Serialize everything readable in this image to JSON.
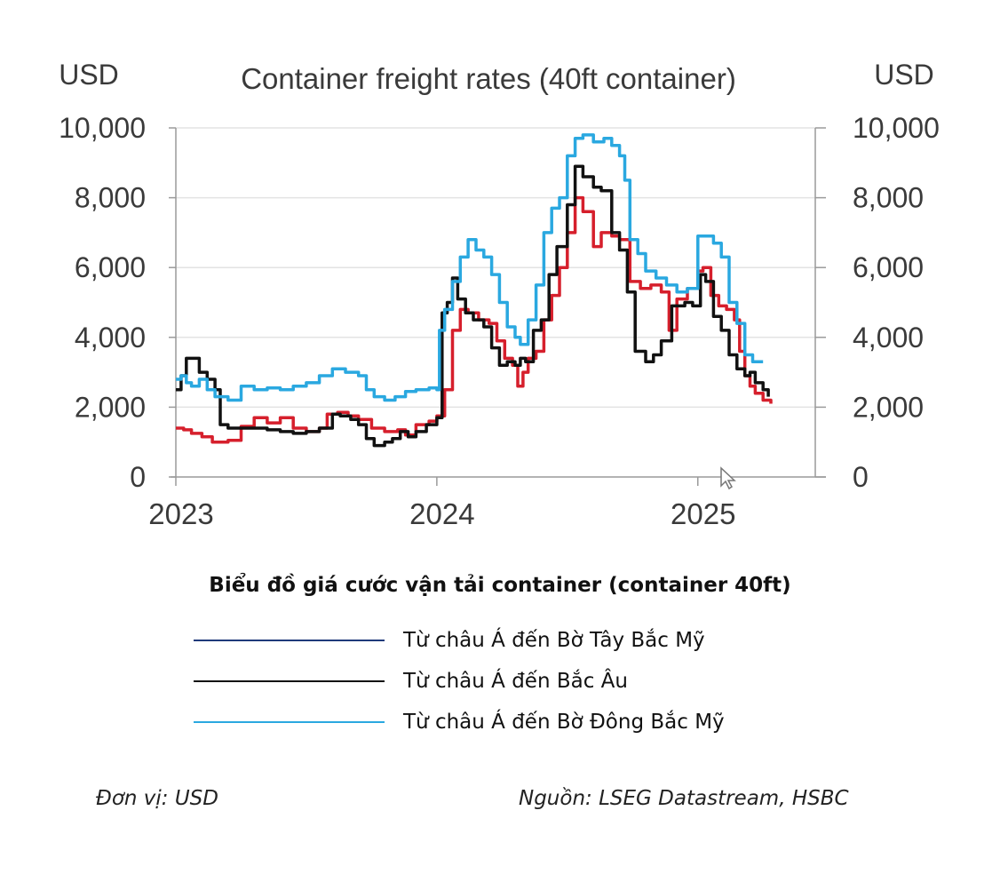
{
  "chart_data": {
    "type": "line",
    "title": "Container freight rates (40ft container)",
    "ylabel_left": "USD",
    "ylabel_right": "USD",
    "ylim": [
      0,
      10000
    ],
    "yticks": [
      0,
      2000,
      4000,
      6000,
      8000,
      10000
    ],
    "ytick_labels": [
      "0",
      "2,000",
      "4,000",
      "6,000",
      "8,000",
      "10,000"
    ],
    "xlim": [
      2023.0,
      2025.45
    ],
    "xticks": [
      2023,
      2024,
      2025
    ],
    "xtick_labels": [
      "2023",
      "2024",
      "2025"
    ],
    "grid": "horizontal",
    "series": [
      {
        "color": "#d61f2c",
        "points": [
          [
            2023.0,
            1400
          ],
          [
            2023.03,
            1350
          ],
          [
            2023.06,
            1250
          ],
          [
            2023.1,
            1150
          ],
          [
            2023.14,
            1000
          ],
          [
            2023.2,
            1050
          ],
          [
            2023.25,
            1450
          ],
          [
            2023.3,
            1700
          ],
          [
            2023.35,
            1550
          ],
          [
            2023.4,
            1700
          ],
          [
            2023.45,
            1400
          ],
          [
            2023.5,
            1300
          ],
          [
            2023.55,
            1400
          ],
          [
            2023.58,
            1800
          ],
          [
            2023.62,
            1850
          ],
          [
            2023.66,
            1750
          ],
          [
            2023.7,
            1650
          ],
          [
            2023.75,
            1400
          ],
          [
            2023.8,
            1300
          ],
          [
            2023.85,
            1350
          ],
          [
            2023.88,
            1200
          ],
          [
            2023.92,
            1500
          ],
          [
            2023.97,
            1600
          ],
          [
            2024.0,
            1750
          ],
          [
            2024.03,
            2500
          ],
          [
            2024.06,
            4200
          ],
          [
            2024.09,
            4800
          ],
          [
            2024.12,
            4700
          ],
          [
            2024.16,
            4500
          ],
          [
            2024.2,
            4400
          ],
          [
            2024.23,
            3900
          ],
          [
            2024.26,
            3400
          ],
          [
            2024.29,
            3200
          ],
          [
            2024.31,
            2600
          ],
          [
            2024.33,
            3000
          ],
          [
            2024.35,
            3400
          ],
          [
            2024.38,
            3600
          ],
          [
            2024.41,
            4500
          ],
          [
            2024.44,
            5200
          ],
          [
            2024.47,
            6000
          ],
          [
            2024.5,
            7000
          ],
          [
            2024.53,
            8000
          ],
          [
            2024.56,
            7600
          ],
          [
            2024.6,
            6600
          ],
          [
            2024.63,
            7000
          ],
          [
            2024.67,
            6900
          ],
          [
            2024.7,
            6800
          ],
          [
            2024.74,
            5600
          ],
          [
            2024.78,
            5400
          ],
          [
            2024.82,
            5500
          ],
          [
            2024.86,
            5300
          ],
          [
            2024.89,
            4200
          ],
          [
            2024.92,
            5100
          ],
          [
            2024.96,
            5400
          ],
          [
            2025.0,
            5900
          ],
          [
            2025.02,
            6000
          ],
          [
            2025.05,
            5200
          ],
          [
            2025.08,
            4900
          ],
          [
            2025.11,
            4800
          ],
          [
            2025.14,
            4500
          ],
          [
            2025.16,
            3600
          ],
          [
            2025.18,
            2900
          ],
          [
            2025.2,
            2600
          ],
          [
            2025.22,
            2400
          ],
          [
            2025.25,
            2200
          ],
          [
            2025.28,
            2100
          ]
        ]
      },
      {
        "color": "#111111",
        "points": [
          [
            2023.0,
            2500
          ],
          [
            2023.02,
            2900
          ],
          [
            2023.04,
            3400
          ],
          [
            2023.07,
            3400
          ],
          [
            2023.09,
            3000
          ],
          [
            2023.12,
            2800
          ],
          [
            2023.15,
            2500
          ],
          [
            2023.17,
            1500
          ],
          [
            2023.2,
            1400
          ],
          [
            2023.25,
            1400
          ],
          [
            2023.3,
            1400
          ],
          [
            2023.35,
            1350
          ],
          [
            2023.4,
            1300
          ],
          [
            2023.45,
            1250
          ],
          [
            2023.5,
            1300
          ],
          [
            2023.55,
            1400
          ],
          [
            2023.6,
            1800
          ],
          [
            2023.63,
            1750
          ],
          [
            2023.67,
            1650
          ],
          [
            2023.7,
            1500
          ],
          [
            2023.73,
            1100
          ],
          [
            2023.76,
            900
          ],
          [
            2023.8,
            1000
          ],
          [
            2023.83,
            1100
          ],
          [
            2023.86,
            1300
          ],
          [
            2023.89,
            1150
          ],
          [
            2023.92,
            1300
          ],
          [
            2023.96,
            1500
          ],
          [
            2024.0,
            1700
          ],
          [
            2024.02,
            4700
          ],
          [
            2024.04,
            5000
          ],
          [
            2024.06,
            5700
          ],
          [
            2024.08,
            5100
          ],
          [
            2024.11,
            4700
          ],
          [
            2024.14,
            4500
          ],
          [
            2024.18,
            4300
          ],
          [
            2024.21,
            3700
          ],
          [
            2024.24,
            3200
          ],
          [
            2024.27,
            3300
          ],
          [
            2024.3,
            3200
          ],
          [
            2024.32,
            3400
          ],
          [
            2024.34,
            3300
          ],
          [
            2024.37,
            4200
          ],
          [
            2024.4,
            4500
          ],
          [
            2024.43,
            5800
          ],
          [
            2024.46,
            6600
          ],
          [
            2024.5,
            7800
          ],
          [
            2024.53,
            8900
          ],
          [
            2024.56,
            8600
          ],
          [
            2024.6,
            8300
          ],
          [
            2024.63,
            8200
          ],
          [
            2024.67,
            7000
          ],
          [
            2024.7,
            6500
          ],
          [
            2024.73,
            5300
          ],
          [
            2024.76,
            3600
          ],
          [
            2024.8,
            3300
          ],
          [
            2024.83,
            3500
          ],
          [
            2024.86,
            3900
          ],
          [
            2024.9,
            4900
          ],
          [
            2024.95,
            5000
          ],
          [
            2024.98,
            4900
          ],
          [
            2025.01,
            5800
          ],
          [
            2025.03,
            5600
          ],
          [
            2025.06,
            4600
          ],
          [
            2025.09,
            4200
          ],
          [
            2025.12,
            3500
          ],
          [
            2025.15,
            3100
          ],
          [
            2025.18,
            2900
          ],
          [
            2025.2,
            3000
          ],
          [
            2025.22,
            2700
          ],
          [
            2025.25,
            2500
          ],
          [
            2025.27,
            2300
          ]
        ]
      },
      {
        "color": "#2aa8e0",
        "points": [
          [
            2023.0,
            2800
          ],
          [
            2023.02,
            2900
          ],
          [
            2023.04,
            2700
          ],
          [
            2023.06,
            2600
          ],
          [
            2023.09,
            2800
          ],
          [
            2023.12,
            2500
          ],
          [
            2023.15,
            2300
          ],
          [
            2023.2,
            2200
          ],
          [
            2023.25,
            2600
          ],
          [
            2023.3,
            2500
          ],
          [
            2023.35,
            2550
          ],
          [
            2023.4,
            2500
          ],
          [
            2023.45,
            2600
          ],
          [
            2023.5,
            2700
          ],
          [
            2023.55,
            2900
          ],
          [
            2023.6,
            3100
          ],
          [
            2023.65,
            3000
          ],
          [
            2023.7,
            2900
          ],
          [
            2023.73,
            2500
          ],
          [
            2023.76,
            2300
          ],
          [
            2023.8,
            2200
          ],
          [
            2023.84,
            2300
          ],
          [
            2023.88,
            2450
          ],
          [
            2023.92,
            2500
          ],
          [
            2023.97,
            2550
          ],
          [
            2024.0,
            2500
          ],
          [
            2024.01,
            4200
          ],
          [
            2024.03,
            4800
          ],
          [
            2024.06,
            5600
          ],
          [
            2024.09,
            6300
          ],
          [
            2024.12,
            6800
          ],
          [
            2024.15,
            6500
          ],
          [
            2024.18,
            6300
          ],
          [
            2024.21,
            5800
          ],
          [
            2024.24,
            5000
          ],
          [
            2024.27,
            4300
          ],
          [
            2024.3,
            4000
          ],
          [
            2024.32,
            3800
          ],
          [
            2024.35,
            4500
          ],
          [
            2024.38,
            5500
          ],
          [
            2024.41,
            7000
          ],
          [
            2024.44,
            7700
          ],
          [
            2024.47,
            8000
          ],
          [
            2024.5,
            9200
          ],
          [
            2024.53,
            9700
          ],
          [
            2024.56,
            9800
          ],
          [
            2024.6,
            9600
          ],
          [
            2024.64,
            9700
          ],
          [
            2024.67,
            9500
          ],
          [
            2024.7,
            9200
          ],
          [
            2024.72,
            8500
          ],
          [
            2024.74,
            6800
          ],
          [
            2024.77,
            6400
          ],
          [
            2024.8,
            5900
          ],
          [
            2024.84,
            5700
          ],
          [
            2024.88,
            5500
          ],
          [
            2024.92,
            5300
          ],
          [
            2024.96,
            5400
          ],
          [
            2025.0,
            6900
          ],
          [
            2025.03,
            6900
          ],
          [
            2025.06,
            6700
          ],
          [
            2025.09,
            6300
          ],
          [
            2025.12,
            5000
          ],
          [
            2025.15,
            4400
          ],
          [
            2025.18,
            3500
          ],
          [
            2025.21,
            3300
          ],
          [
            2025.25,
            3300
          ]
        ]
      }
    ]
  },
  "caption": {
    "title": "Biểu đồ giá cước vận tải container (container 40ft)"
  },
  "legend": [
    {
      "label": "Từ châu Á đến Bờ Tây Bắc Mỹ",
      "color": "#1f3a7a"
    },
    {
      "label": "Từ châu Á đến Bắc Âu",
      "color": "#111111"
    },
    {
      "label": "Từ châu Á đến Bờ Đông Bắc Mỹ",
      "color": "#2aa8e0"
    }
  ],
  "footer": {
    "unit": "Đơn vị: USD",
    "source": "Nguồn: LSEG Datastream, HSBC"
  }
}
